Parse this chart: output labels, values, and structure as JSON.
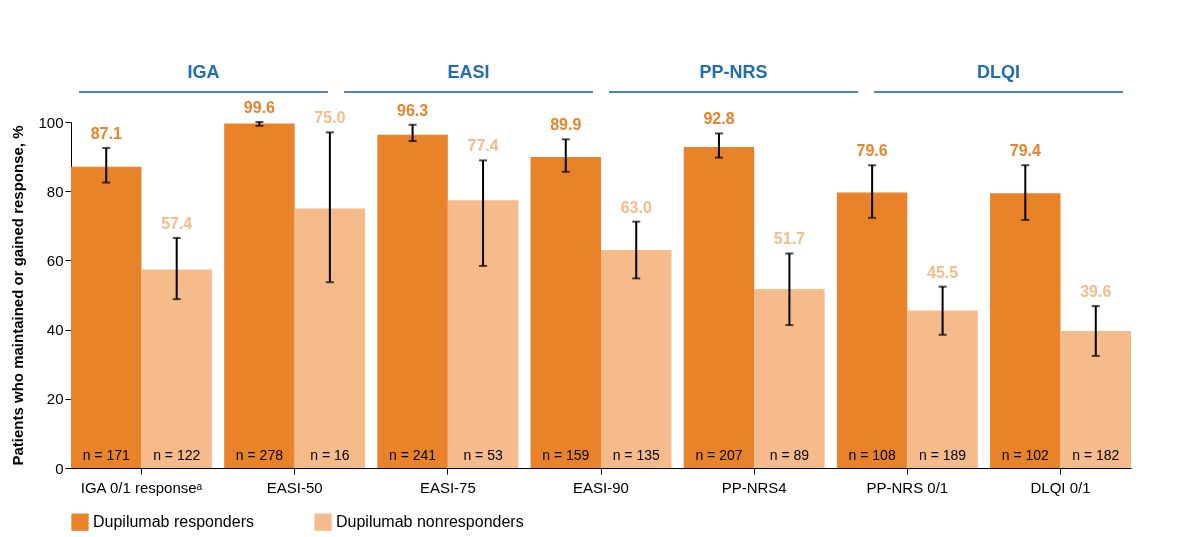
{
  "chart_data": {
    "type": "bar",
    "categories": [
      "IGA 0/1 responseᵃ",
      "EASI-50",
      "EASI-75",
      "EASI-90",
      "PP-NRS4",
      "PP-NRS 0/1",
      "DLQI 0/1"
    ],
    "ylabel": "Patients who maintained or gained response, %",
    "ylim": [
      0,
      100
    ],
    "yticks": [
      0,
      20,
      40,
      60,
      80,
      100
    ],
    "series": [
      {
        "name": "Dupilumab responders",
        "color": "#e8832a",
        "values": [
          87.1,
          99.6,
          96.3,
          89.9,
          92.8,
          79.6,
          79.4
        ],
        "errors": [
          [
            82.5,
            92.5
          ],
          [
            98.9,
            100
          ],
          [
            94.5,
            99.2
          ],
          [
            85.6,
            95.0
          ],
          [
            89.7,
            96.7
          ],
          [
            72.3,
            87.5
          ],
          [
            71.7,
            87.5
          ]
        ]
      },
      {
        "name": "Dupilumab nonresponders",
        "color": "#f5bb8a",
        "values": [
          57.4,
          75.0,
          77.4,
          63.0,
          51.7,
          45.5,
          39.6
        ],
        "errors": [
          [
            48.8,
            66.5
          ],
          [
            53.7,
            97.0
          ],
          [
            58.4,
            88.9
          ],
          [
            54.8,
            71.2
          ],
          [
            41.3,
            62.0
          ],
          [
            38.5,
            52.4
          ],
          [
            32.4,
            46.8
          ]
        ]
      }
    ],
    "value_labels": [
      [
        "87.1",
        "99.6",
        "96.3",
        "89.9",
        "92.8",
        "79.6",
        "79.4"
      ],
      [
        "57.4",
        "75.0",
        "77.4",
        "63.0",
        "51.7",
        "45.5",
        "39.6"
      ]
    ],
    "legend": "bottom",
    "grid": false,
    "annotations": [
      "IGA",
      "EASI",
      "PP-NRS",
      "DLQI",
      {
        "text": "n = 171",
        "x": "IGA 0/1 responseᵃ",
        "y": 0
      },
      {
        "text": "n = 122",
        "x": "IGA 0/1 responseᵃ",
        "y": 0
      },
      {
        "text": "n = 278",
        "x": "EASI-50",
        "y": 0
      },
      {
        "text": "n = 16",
        "x": "EASI-50",
        "y": 0
      },
      {
        "text": "n = 241",
        "x": "EASI-75",
        "y": 0
      },
      {
        "text": "n = 53",
        "x": "EASI-75",
        "y": 0
      },
      {
        "text": "n = 159",
        "x": "EASI-90",
        "y": 0
      },
      {
        "text": "n = 135",
        "x": "EASI-90",
        "y": 0
      },
      {
        "text": "n = 207",
        "x": "PP-NRS4",
        "y": 0
      },
      {
        "text": "n = 89",
        "x": "PP-NRS4",
        "y": 0
      },
      {
        "text": "n = 108",
        "x": "PP-NRS 0/1",
        "y": 0
      },
      {
        "text": "n = 189",
        "x": "PP-NRS 0/1",
        "y": 0
      },
      {
        "text": "n = 102",
        "x": "DLQI 0/1",
        "y": 0
      },
      {
        "text": "n = 182",
        "x": "DLQI 0/1",
        "y": 0
      }
    ]
  }
}
